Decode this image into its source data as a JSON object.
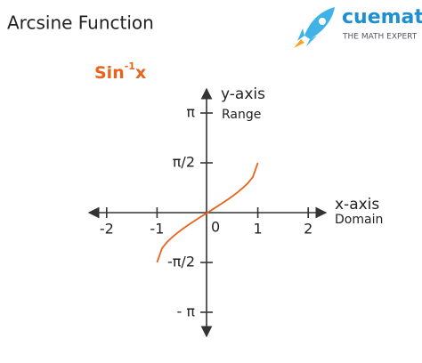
{
  "header": {
    "title": "Arcsine Function",
    "brand": "cuemath",
    "tagline": "THE MATH EXPERT"
  },
  "chart_data": {
    "type": "line",
    "function_label": {
      "base": "Sin",
      "exponent": "-1",
      "argument": "x"
    },
    "y_axis_label": "y-axis",
    "y_axis_sublabel": "Range",
    "x_axis_label": "x-axis",
    "x_axis_sublabel": "Domain",
    "x": [
      -1,
      -0.9,
      -0.8,
      -0.7,
      -0.6,
      -0.5,
      -0.4,
      -0.3,
      -0.2,
      -0.1,
      0,
      0.1,
      0.2,
      0.3,
      0.4,
      0.5,
      0.6,
      0.7,
      0.8,
      0.9,
      1
    ],
    "values": [
      -1.5708,
      -1.1198,
      -0.9273,
      -0.7754,
      -0.6435,
      -0.5236,
      -0.4115,
      -0.3047,
      -0.2014,
      -0.1002,
      0,
      0.1002,
      0.2014,
      0.3047,
      0.4115,
      0.5236,
      0.6435,
      0.7754,
      0.9273,
      1.1198,
      1.5708
    ],
    "color": "#e8641c",
    "xlim": [
      -2.35,
      2.35
    ],
    "ylim": [
      -3.9,
      3.9
    ],
    "xticks": [
      -2,
      -1,
      0,
      1,
      2
    ],
    "yticks": [
      {
        "value": -3.14159,
        "label": "- π"
      },
      {
        "value": -1.5708,
        "label": "-π/2"
      },
      {
        "value": 1.5708,
        "label": "π/2"
      },
      {
        "value": 3.14159,
        "label": "π"
      }
    ]
  }
}
